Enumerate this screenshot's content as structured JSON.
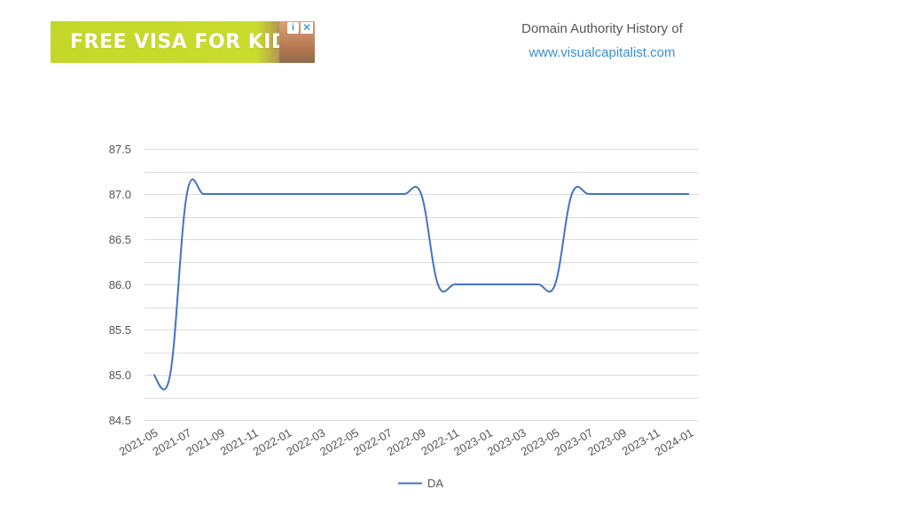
{
  "ad": {
    "text": "FREE VISA FOR KIDS",
    "choices_icon": "info-icon",
    "close_icon": "close-icon"
  },
  "header": {
    "title": "Domain Authority History of",
    "link": "www.visualcapitalist.com"
  },
  "colors": {
    "line": "#4472c4",
    "grid": "#dcdcdc",
    "tick_text": "#555555"
  },
  "chart_data": {
    "type": "line",
    "x_tick_labels": [
      "2021-05",
      "2021-07",
      "2021-09",
      "2021-11",
      "2022-01",
      "2022-03",
      "2022-05",
      "2022-07",
      "2022-09",
      "2022-11",
      "2023-01",
      "2023-03",
      "2023-05",
      "2023-07",
      "2023-09",
      "2023-11",
      "2024-01"
    ],
    "y_ticks": [
      84.5,
      85.0,
      85.5,
      86.0,
      86.5,
      87.0,
      87.5
    ],
    "ylim": [
      84.5,
      87.5
    ],
    "grid": true,
    "legend_position": "bottom",
    "series": [
      {
        "name": "DA",
        "points": [
          {
            "x": "2021-05",
            "y": 85.0
          },
          {
            "x": "2021-06",
            "y": 85.0
          },
          {
            "x": "2021-07",
            "y": 87.0
          },
          {
            "x": "2021-08",
            "y": 87.0
          },
          {
            "x": "2021-09",
            "y": 87.0
          },
          {
            "x": "2021-10",
            "y": 87.0
          },
          {
            "x": "2021-11",
            "y": 87.0
          },
          {
            "x": "2021-12",
            "y": 87.0
          },
          {
            "x": "2022-01",
            "y": 87.0
          },
          {
            "x": "2022-02",
            "y": 87.0
          },
          {
            "x": "2022-03",
            "y": 87.0
          },
          {
            "x": "2022-04",
            "y": 87.0
          },
          {
            "x": "2022-05",
            "y": 87.0
          },
          {
            "x": "2022-06",
            "y": 87.0
          },
          {
            "x": "2022-07",
            "y": 87.0
          },
          {
            "x": "2022-08",
            "y": 87.0
          },
          {
            "x": "2022-09",
            "y": 87.0
          },
          {
            "x": "2022-10",
            "y": 86.0
          },
          {
            "x": "2022-11",
            "y": 86.0
          },
          {
            "x": "2022-12",
            "y": 86.0
          },
          {
            "x": "2023-01",
            "y": 86.0
          },
          {
            "x": "2023-02",
            "y": 86.0
          },
          {
            "x": "2023-03",
            "y": 86.0
          },
          {
            "x": "2023-04",
            "y": 86.0
          },
          {
            "x": "2023-05",
            "y": 86.0
          },
          {
            "x": "2023-06",
            "y": 87.0
          },
          {
            "x": "2023-07",
            "y": 87.0
          },
          {
            "x": "2023-08",
            "y": 87.0
          },
          {
            "x": "2023-09",
            "y": 87.0
          },
          {
            "x": "2023-10",
            "y": 87.0
          },
          {
            "x": "2023-11",
            "y": 87.0
          },
          {
            "x": "2023-12",
            "y": 87.0
          },
          {
            "x": "2024-01",
            "y": 87.0
          }
        ]
      }
    ]
  }
}
